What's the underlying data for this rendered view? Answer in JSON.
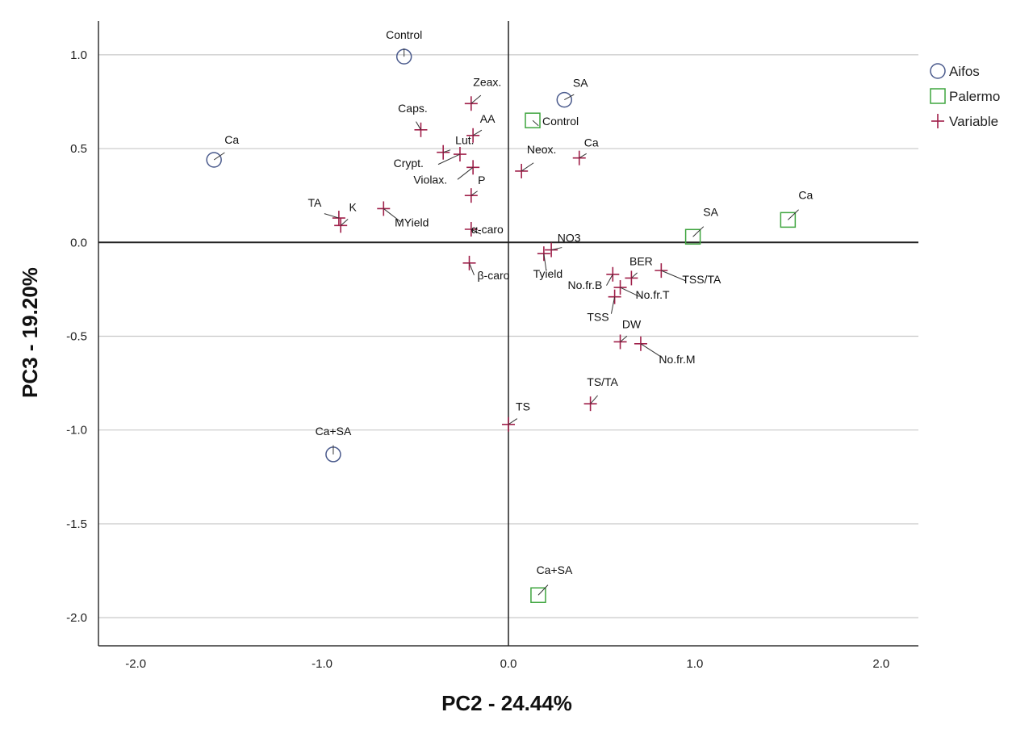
{
  "chart_data": {
    "type": "scatter",
    "xlabel": "PC2 - 24.44%",
    "ylabel": "PC3 - 19.20%",
    "xlim": [
      -2.2,
      2.2
    ],
    "ylim": [
      -2.15,
      1.18
    ],
    "x_ticks": [
      -2.0,
      -1.0,
      0.0,
      1.0,
      2.0
    ],
    "x_tick_labels": [
      "-2.0",
      "-1.0",
      "0.0",
      "1.0",
      "2.0"
    ],
    "y_ticks": [
      1.0,
      0.5,
      0.0,
      -0.5,
      -1.0,
      -1.5,
      -2.0
    ],
    "y_tick_labels": [
      "1.0",
      "0.5",
      "0.0",
      "-0.5",
      "-1.0",
      "-1.5",
      "-2.0"
    ],
    "grid": "horizontal",
    "legend_position": "top-right",
    "colors": {
      "Aifos": "#4a5a8c",
      "Palermo": "#3fa53f",
      "Variable": "#a0204a"
    },
    "series": [
      {
        "name": "Aifos",
        "marker": "circle",
        "points": [
          {
            "label": "Control",
            "x": -0.56,
            "y": 0.99
          },
          {
            "label": "SA",
            "x": 0.3,
            "y": 0.76
          },
          {
            "label": "Ca",
            "x": -1.58,
            "y": 0.44
          },
          {
            "label": "Ca+SA",
            "x": -0.94,
            "y": -1.13
          }
        ]
      },
      {
        "name": "Palermo",
        "marker": "square",
        "points": [
          {
            "label": "Control",
            "x": 0.13,
            "y": 0.65
          },
          {
            "label": "SA",
            "x": 0.99,
            "y": 0.03
          },
          {
            "label": "Ca",
            "x": 1.5,
            "y": 0.12
          },
          {
            "label": "Ca+SA",
            "x": 0.16,
            "y": -1.88
          }
        ]
      },
      {
        "name": "Variable",
        "marker": "plus",
        "points": [
          {
            "label": "Zeax.",
            "x": -0.2,
            "y": 0.74
          },
          {
            "label": "Caps.",
            "x": -0.47,
            "y": 0.6
          },
          {
            "label": "AA",
            "x": -0.19,
            "y": 0.57
          },
          {
            "label": "Lut.",
            "x": -0.35,
            "y": 0.48
          },
          {
            "label": "Crypt.",
            "x": -0.26,
            "y": 0.47
          },
          {
            "label": "Violax.",
            "x": -0.19,
            "y": 0.4
          },
          {
            "label": "P",
            "x": -0.2,
            "y": 0.25
          },
          {
            "label": "Neox.",
            "x": 0.07,
            "y": 0.38
          },
          {
            "label": "Ca",
            "x": 0.38,
            "y": 0.45
          },
          {
            "label": "TA",
            "x": -0.91,
            "y": 0.13
          },
          {
            "label": "K",
            "x": -0.9,
            "y": 0.09
          },
          {
            "label": "MYield",
            "x": -0.67,
            "y": 0.18
          },
          {
            "label": "α-caro",
            "x": -0.2,
            "y": 0.07
          },
          {
            "label": "β-caro",
            "x": -0.21,
            "y": -0.11
          },
          {
            "label": "NO3",
            "x": 0.23,
            "y": -0.04
          },
          {
            "label": "Tyield",
            "x": 0.19,
            "y": -0.06
          },
          {
            "label": "BER",
            "x": 0.66,
            "y": -0.19
          },
          {
            "label": "TSS/TA",
            "x": 0.82,
            "y": -0.15
          },
          {
            "label": "No.fr.B",
            "x": 0.56,
            "y": -0.17
          },
          {
            "label": "No.fr.T",
            "x": 0.6,
            "y": -0.24
          },
          {
            "label": "TSS",
            "x": 0.57,
            "y": -0.29
          },
          {
            "label": "DW",
            "x": 0.6,
            "y": -0.53
          },
          {
            "label": "No.fr.M",
            "x": 0.71,
            "y": -0.54
          },
          {
            "label": "TS/TA",
            "x": 0.44,
            "y": -0.86
          },
          {
            "label": "TS",
            "x": 0.0,
            "y": -0.97
          }
        ]
      }
    ]
  }
}
